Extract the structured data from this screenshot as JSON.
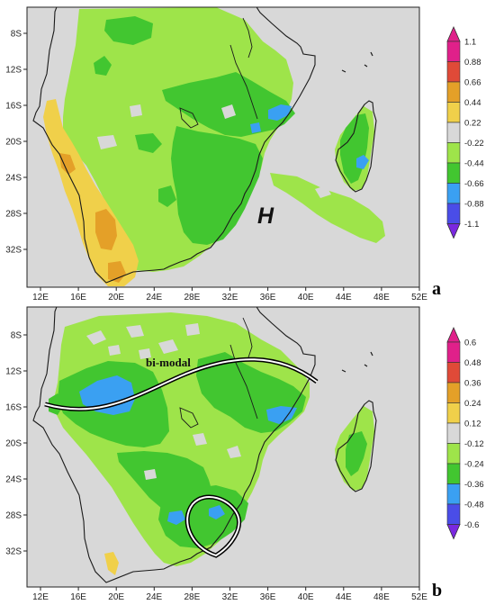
{
  "colors": {
    "background": "#ffffff",
    "ocean": "#d8d8d8",
    "frame": "#222222",
    "coast": "#1a1a1a",
    "light_green": "#9ee44a",
    "green": "#42c630",
    "blue": "#3aa0f2",
    "deep_blue": "#4a4de8",
    "yellow": "#f0d04a",
    "orange": "#e4a028",
    "red": "#e04a38",
    "magenta": "#e0208a",
    "violet": "#7a28e0",
    "neutral": "#d8d8d8"
  },
  "panels": [
    {
      "id": "a",
      "panel_label": "a",
      "x_ticks": [
        "12E",
        "16E",
        "20E",
        "24E",
        "28E",
        "32E",
        "36E",
        "40E",
        "44E",
        "48E",
        "52E"
      ],
      "y_ticks": [
        "8S",
        "12S",
        "16S",
        "20S",
        "24S",
        "28S",
        "32S"
      ],
      "annotations": [
        {
          "text": "H"
        }
      ],
      "colorbar": {
        "labels": [
          "1.1",
          "0.88",
          "0.66",
          "0.44",
          "0.22",
          "-0.22",
          "-0.44",
          "-0.66",
          "-0.88",
          "-1.1"
        ]
      }
    },
    {
      "id": "b",
      "panel_label": "b",
      "x_ticks": [
        "12E",
        "16E",
        "20E",
        "24E",
        "28E",
        "32E",
        "36E",
        "40E",
        "44E",
        "48E",
        "52E"
      ],
      "y_ticks": [
        "8S",
        "12S",
        "16S",
        "20S",
        "24S",
        "28S",
        "32S"
      ],
      "annotations": [
        {
          "text": "bi-modal"
        }
      ],
      "colorbar": {
        "labels": [
          "0.6",
          "0.48",
          "0.36",
          "0.24",
          "0.12",
          "-0.12",
          "-0.24",
          "-0.36",
          "-0.48",
          "-0.6"
        ]
      }
    }
  ]
}
